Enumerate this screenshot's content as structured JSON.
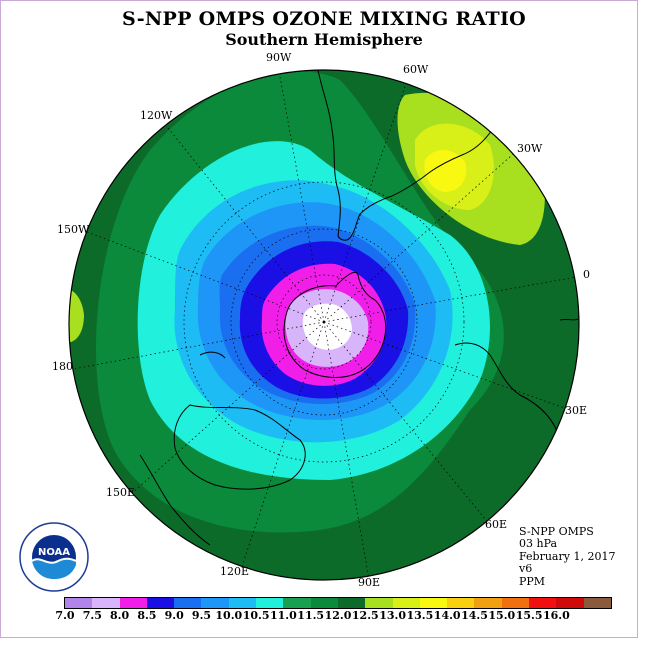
{
  "title": "S-NPP OMPS OZONE MIXING RATIO",
  "subtitle": "Southern Hemisphere",
  "longitude_labels": [
    "90W",
    "60W",
    "30W",
    "0",
    "30E",
    "60E",
    "90E",
    "120E",
    "150E",
    "180",
    "150W",
    "120W"
  ],
  "info": {
    "line1": "S-NPP OMPS",
    "line2": "03 hPa",
    "line3": "February 1, 2017",
    "line4": "v6",
    "line5": "PPM"
  },
  "logo_text": "NOAA",
  "colorbar": {
    "colors": [
      "#b084e8",
      "#d8b4fb",
      "#f01ee8",
      "#1a10e6",
      "#1a6ef0",
      "#1e96f7",
      "#1ebcf5",
      "#20f0dc",
      "#18a050",
      "#0a8a3a",
      "#0d6b2a",
      "#a8e020",
      "#d8f018",
      "#f8f810",
      "#f8d010",
      "#f0a010",
      "#f07010",
      "#f01010",
      "#d00a0a",
      "#8b5a3c"
    ],
    "ticks": [
      "7.0",
      "7.5",
      "8.0",
      "8.5",
      "9.0",
      "9.5",
      "10.0",
      "10.5",
      "11.0",
      "11.5",
      "12.0",
      "12.5",
      "13.0",
      "13.5",
      "14.0",
      "14.5",
      "15.0",
      "15.5",
      "16.0"
    ]
  }
}
